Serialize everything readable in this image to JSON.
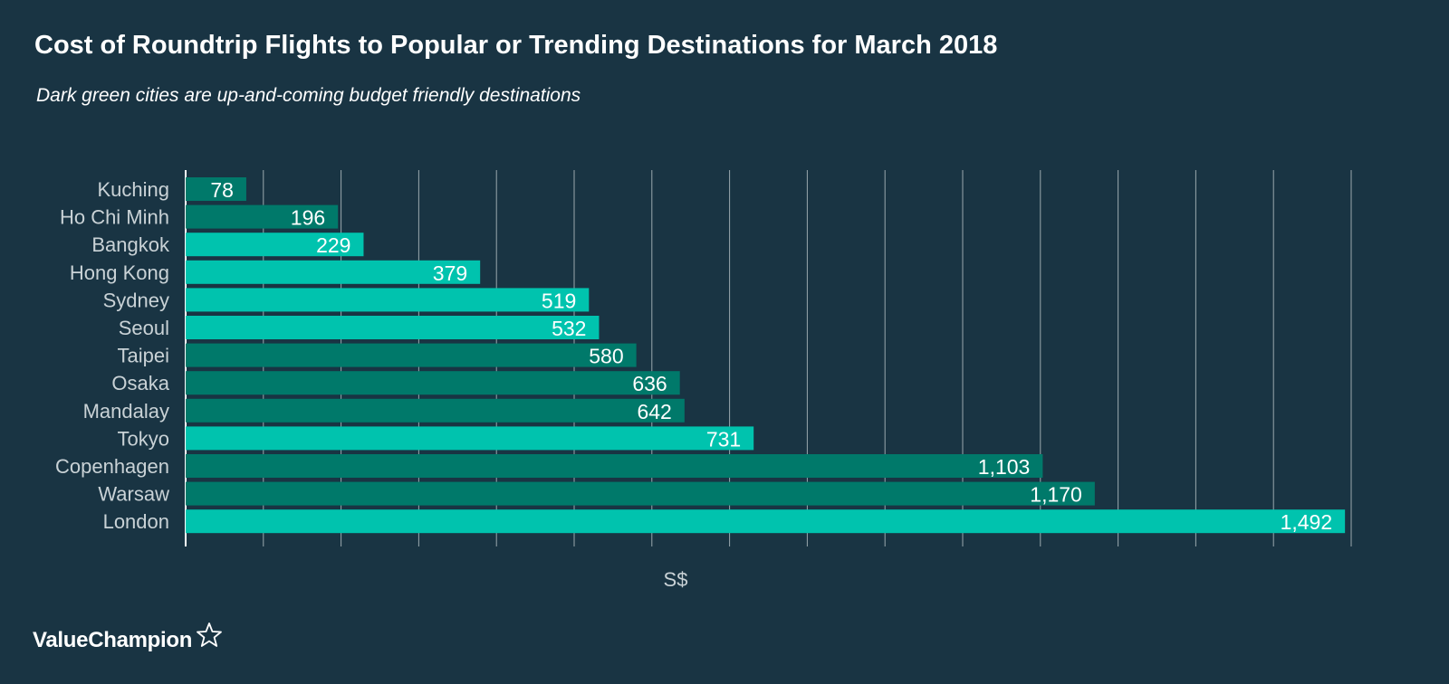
{
  "title": "Cost of Roundtrip Flights to Popular or Trending Destinations for March 2018",
  "subtitle": "Dark green cities are up-and-coming budget friendly destinations",
  "brand": {
    "logo_text": "ValueChampion",
    "logo_icon": "star-outline-icon"
  },
  "colors": {
    "background": "#193443",
    "trending": "#00796a",
    "popular": "#00c3ae",
    "grid": "#9aa8ae",
    "label_text": "#c9d2d6",
    "value_text": "#ffffff"
  },
  "chart_data": {
    "type": "bar",
    "orientation": "horizontal",
    "title": "Cost of Roundtrip Flights to Popular or Trending Destinations for March 2018",
    "subtitle": "Dark green cities are up-and-coming budget friendly destinations",
    "xlabel": "S$",
    "ylabel": "",
    "xlim": [
      0,
      1500
    ],
    "grid": true,
    "legend": "none",
    "categories": [
      "Kuching",
      "Ho Chi Minh",
      "Bangkok",
      "Hong Kong",
      "Sydney",
      "Seoul",
      "Taipei",
      "Osaka",
      "Mandalay",
      "Tokyo",
      "Copenhagen",
      "Warsaw",
      "London"
    ],
    "values": [
      78,
      196,
      229,
      379,
      519,
      532,
      580,
      636,
      642,
      731,
      1103,
      1170,
      1492
    ],
    "value_labels": [
      "78",
      "196",
      "229",
      "379",
      "519",
      "532",
      "580",
      "636",
      "642",
      "731",
      "1,103",
      "1,170",
      "1,492"
    ],
    "category_group": [
      "trending",
      "trending",
      "popular",
      "popular",
      "popular",
      "popular",
      "trending",
      "trending",
      "trending",
      "popular",
      "trending",
      "trending",
      "popular"
    ]
  }
}
